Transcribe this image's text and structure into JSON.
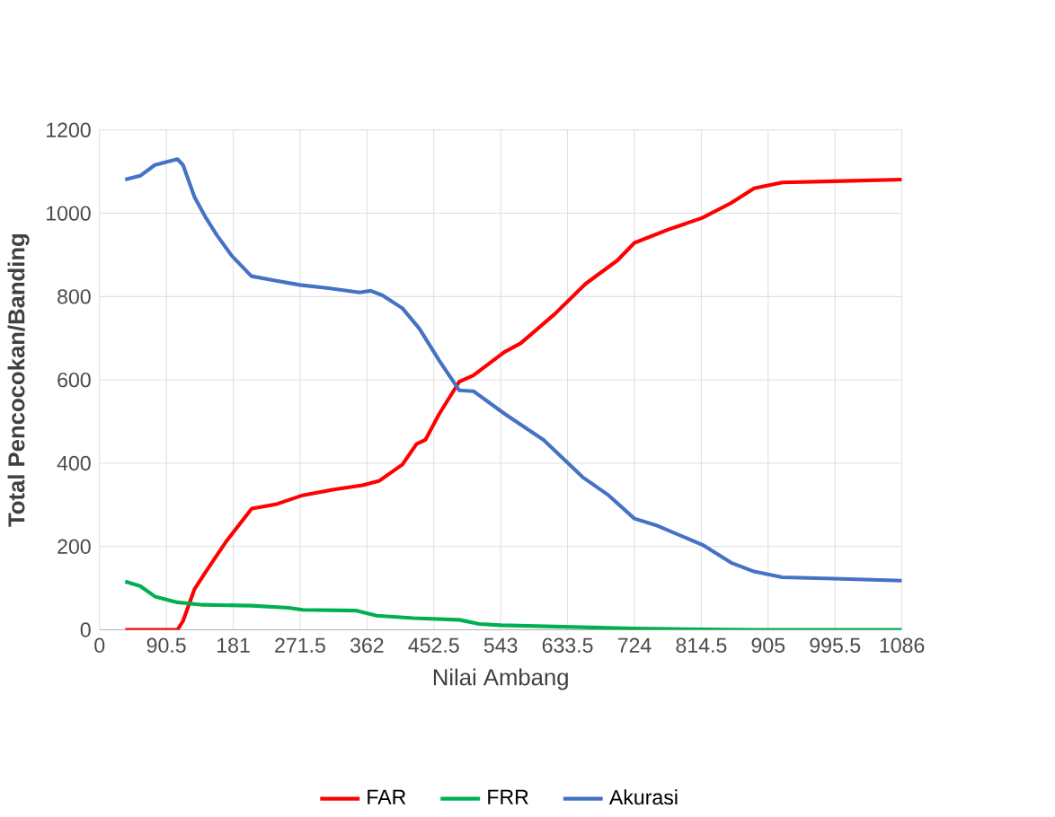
{
  "chart_data": {
    "type": "line",
    "xlabel": "Nilai Ambang",
    "ylabel": "Total Pencocokan/Banding",
    "xlim": [
      0,
      1086
    ],
    "ylim": [
      0,
      1200
    ],
    "xticks": [
      0,
      90.5,
      181,
      271.5,
      362,
      452.5,
      543,
      633.5,
      724,
      814.5,
      905,
      995.5,
      1086
    ],
    "yticks": [
      0,
      200,
      400,
      600,
      800,
      1000,
      1200
    ],
    "grid": true,
    "legend": "bottom",
    "marker": "none",
    "line_style": "solid",
    "series": [
      {
        "name": "FAR",
        "color": "#ff0000",
        "x": [
          34.7,
          105.5,
          113,
          128.6,
          144,
          171,
          206,
          240,
          275,
          317,
          356,
          379,
          410,
          429,
          441,
          460,
          487,
          506,
          548,
          570,
          616,
          658,
          701,
          724,
          770,
          816,
          855,
          886,
          924,
          994,
          1086
        ],
        "values": [
          0,
          0,
          21,
          98,
          140,
          211,
          291,
          302,
          323,
          337,
          347,
          358,
          397,
          446,
          456,
          519,
          596,
          611,
          667,
          688,
          758,
          831,
          887,
          929,
          961,
          989,
          1025,
          1060,
          1074,
          1077,
          1081
        ]
      },
      {
        "name": "FRR",
        "color": "#00b050",
        "x": [
          34.7,
          55,
          75,
          105.5,
          140,
          206,
          256,
          275,
          348,
          375,
          425,
          487,
          514,
          543,
          724,
          886,
          1086
        ],
        "values": [
          116,
          105,
          80,
          66,
          60,
          58,
          53,
          48,
          46,
          34,
          28,
          24,
          14,
          11,
          3,
          0,
          0
        ]
      },
      {
        "name": "Akurasi",
        "color": "#4472c4",
        "x": [
          34.7,
          55,
          75,
          105.5,
          113,
          128.6,
          144,
          159,
          179,
          205.6,
          236,
          271,
          310,
          352,
          367,
          383,
          410,
          433,
          460,
          487,
          506,
          548,
          601,
          655,
          689,
          724,
          755,
          816,
          855,
          886,
          924,
          994,
          1086
        ],
        "values": [
          1081,
          1090,
          1116,
          1130,
          1116,
          1039,
          989,
          947,
          898,
          849,
          839,
          828,
          820,
          810,
          814,
          803,
          772,
          723,
          646,
          575,
          573,
          519,
          456,
          365,
          323,
          267,
          250,
          204,
          161,
          140,
          126,
          123,
          118
        ]
      }
    ]
  }
}
